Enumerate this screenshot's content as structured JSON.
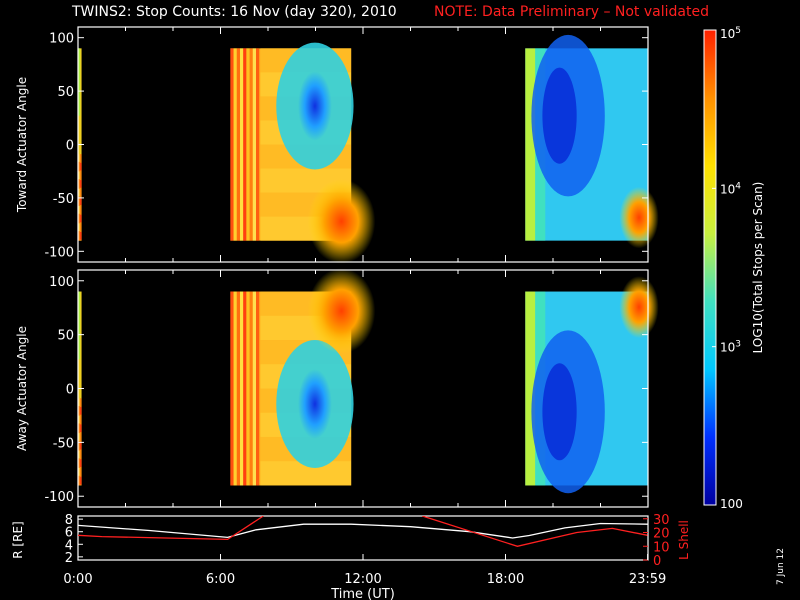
{
  "title": {
    "main": "TWINS2: Stop Counts: 16 Nov (day 320), 2010",
    "note": "NOTE: Data Preliminary – Not validated"
  },
  "date_stamp": "7 Jun 12",
  "colors": {
    "background": "#000000",
    "text": "#ffffff",
    "note": "#ff2020",
    "r_line": "#ffffff",
    "lshell_line": "#ff2020"
  },
  "colorbar": {
    "label": "LOG10(Total Stops per Scan)",
    "ticks": [
      {
        "label": "10",
        "exp": "5",
        "value": 100000
      },
      {
        "label": "10",
        "exp": "4",
        "value": 10000
      },
      {
        "label": "10",
        "exp": "3",
        "value": 1000
      },
      {
        "label": "100",
        "exp": "",
        "value": 100
      }
    ],
    "scale": "log",
    "range": [
      100,
      100000
    ],
    "colormap": [
      "#0000a0",
      "#0030ff",
      "#00c8ff",
      "#40e0c0",
      "#c8f040",
      "#ffe000",
      "#ff9000",
      "#ff2000"
    ]
  },
  "chart_data": [
    {
      "type": "heatmap",
      "panel": "toward",
      "ylabel": "Toward Actuator Angle",
      "ylim": [
        -110,
        110
      ],
      "yticks": [
        100,
        50,
        0,
        -50,
        -100
      ],
      "xlim_hours": [
        0,
        24
      ],
      "data_angle_range": [
        -90,
        90
      ],
      "segments": [
        {
          "start": "0:00",
          "end": "0:09",
          "level": "yellow-orange"
        },
        {
          "start": "6:25",
          "end": "11:30",
          "level": "orange with low-count core near +40"
        },
        {
          "start": "18:50",
          "end": "23:59",
          "level": "blue-cyan with orange patch near -70"
        }
      ]
    },
    {
      "type": "heatmap",
      "panel": "away",
      "ylabel": "Away Actuator Angle",
      "ylim": [
        -110,
        110
      ],
      "yticks": [
        100,
        50,
        0,
        -50,
        -100
      ],
      "xlim_hours": [
        0,
        24
      ],
      "data_angle_range": [
        -90,
        90
      ],
      "segments": [
        {
          "start": "0:00",
          "end": "0:09",
          "level": "yellow-orange"
        },
        {
          "start": "6:25",
          "end": "11:30",
          "level": "orange with low-count core near -10"
        },
        {
          "start": "18:50",
          "end": "23:59",
          "level": "blue with orange patch near +80"
        }
      ]
    },
    {
      "type": "line",
      "panel": "orbit",
      "ylabel_left": "R [RE]",
      "ylabel_right": "L Shell",
      "xlabel": "Time (UT)",
      "xticks": [
        "0:00",
        "6:00",
        "12:00",
        "18:00",
        "23:59"
      ],
      "xtick_hours": [
        0,
        6,
        12,
        18,
        23.983
      ],
      "yticks_left": [
        8,
        6,
        4,
        2
      ],
      "ylim_left": [
        1.5,
        8.5
      ],
      "yticks_right": [
        30,
        20,
        10,
        0
      ],
      "ylim_right": [
        0,
        32
      ],
      "series": [
        {
          "name": "R [RE]",
          "axis": "left",
          "color": "#ffffff",
          "x": [
            0,
            3,
            6.3,
            7.5,
            9.5,
            11.5,
            14,
            16.5,
            18.3,
            19,
            20.5,
            22,
            23.983
          ],
          "y": [
            7.0,
            6.2,
            5.1,
            6.3,
            7.2,
            7.2,
            6.8,
            6.0,
            5.0,
            5.4,
            6.6,
            7.3,
            7.2
          ]
        },
        {
          "name": "L Shell",
          "axis": "right",
          "color": "#ff2020",
          "x": [
            0,
            1,
            6.3,
            7.8,
            null,
            14.5,
            18.5,
            21,
            22.5,
            23.983
          ],
          "y": [
            18,
            17,
            15,
            32,
            null,
            32,
            10,
            20,
            23,
            18
          ]
        }
      ]
    }
  ]
}
